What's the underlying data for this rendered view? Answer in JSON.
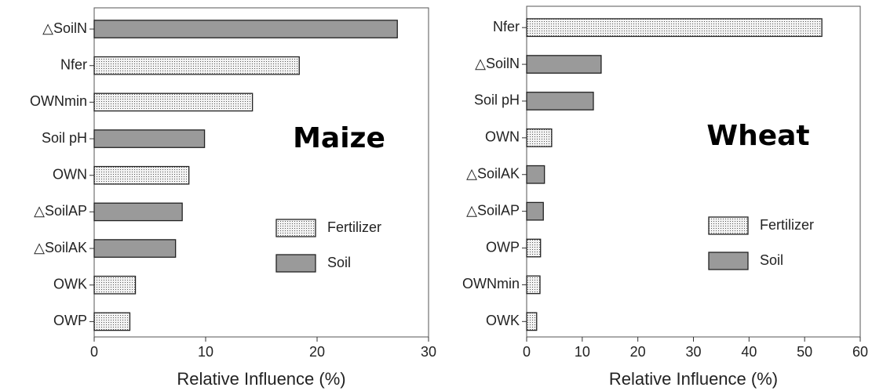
{
  "chart_data": [
    {
      "type": "bar",
      "orientation": "horizontal",
      "title": "Maize",
      "xlabel": "Relative Influence (%)",
      "categories": [
        "△SoilN",
        "Nfer",
        "OWNmin",
        "Soil pH",
        "OWN",
        "△SoilAP",
        "△SoilAK",
        "OWK",
        "OWP"
      ],
      "series": [
        {
          "name": "Fertilizer",
          "color": "#f2f2f2",
          "pattern": "dots",
          "values": [
            null,
            18.4,
            14.2,
            null,
            8.5,
            null,
            null,
            3.7,
            3.2
          ]
        },
        {
          "name": "Soil",
          "color": "#9a9a9a",
          "values": [
            27.2,
            null,
            null,
            9.9,
            null,
            7.9,
            7.3,
            null,
            null
          ]
        }
      ],
      "xlim": [
        0,
        30
      ],
      "xticks": [
        0,
        10,
        20,
        30
      ],
      "legend": "right"
    },
    {
      "type": "bar",
      "orientation": "horizontal",
      "title": "Wheat",
      "xlabel": "Relative Influence (%)",
      "categories": [
        "Nfer",
        "△SoilN",
        "Soil pH",
        "OWN",
        "△SoilAK",
        "△SoilAP",
        "OWP",
        "OWNmin",
        "OWK"
      ],
      "series": [
        {
          "name": "Fertilizer",
          "color": "#f2f2f2",
          "pattern": "dots",
          "values": [
            53.1,
            null,
            null,
            4.5,
            null,
            null,
            2.5,
            2.4,
            1.8
          ]
        },
        {
          "name": "Soil",
          "color": "#9a9a9a",
          "values": [
            null,
            13.4,
            12.0,
            null,
            3.2,
            3.0,
            null,
            null,
            null
          ]
        }
      ],
      "xlim": [
        0,
        60
      ],
      "xticks": [
        0,
        10,
        20,
        30,
        40,
        50,
        60
      ],
      "legend": "right"
    }
  ]
}
